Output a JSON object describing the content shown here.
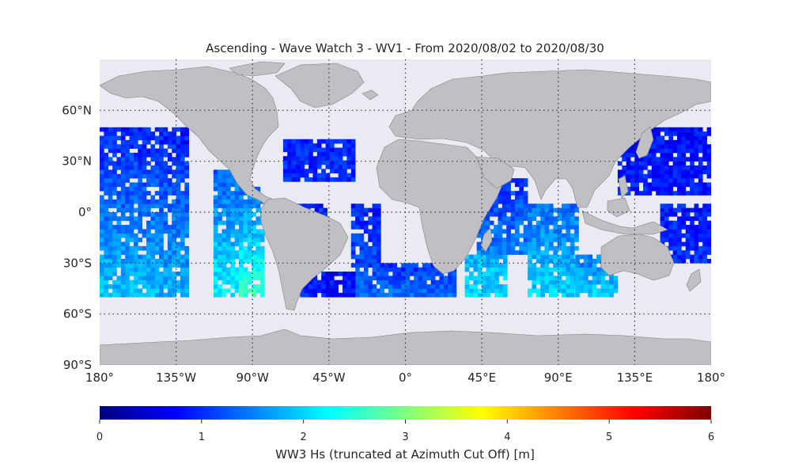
{
  "title": "Ascending - Wave Watch 3 - WV1 - From 2020/08/02 to 2020/08/30",
  "map": {
    "projection": "equirectangular",
    "ocean_color": "#eaeaf2",
    "land_color": "#c0c0c4",
    "grid": "dotted",
    "lon_range": [
      -180,
      180
    ],
    "lat_range": [
      -90,
      90
    ],
    "lon_ticks": [
      {
        "value": -180,
        "label": "180°"
      },
      {
        "value": -135,
        "label": "135°W"
      },
      {
        "value": -90,
        "label": "90°W"
      },
      {
        "value": -45,
        "label": "45°W"
      },
      {
        "value": 0,
        "label": "0°"
      },
      {
        "value": 45,
        "label": "45°E"
      },
      {
        "value": 90,
        "label": "90°E"
      },
      {
        "value": 135,
        "label": "135°E"
      },
      {
        "value": 180,
        "label": "180°"
      }
    ],
    "lat_ticks": [
      {
        "value": 60,
        "label": "60°N"
      },
      {
        "value": 30,
        "label": "30°N"
      },
      {
        "value": 0,
        "label": "0°"
      },
      {
        "value": -30,
        "label": "30°S"
      },
      {
        "value": -60,
        "label": "60°S"
      },
      {
        "value": -90,
        "label": "90°S"
      }
    ]
  },
  "chart_data": {
    "type": "heatmap",
    "data_extent_lat": [
      -50,
      50
    ],
    "swaths": [
      {
        "lon": [
          -180,
          -147
        ],
        "lat": [
          -50,
          50
        ],
        "value_north": 0.9,
        "value_south": 1.9
      },
      {
        "lon": [
          -145,
          -128
        ],
        "lat": [
          -50,
          50
        ],
        "value_north": 0.9,
        "value_south": 1.8
      },
      {
        "lon": [
          -113,
          -97
        ],
        "lat": [
          -50,
          23
        ],
        "value_north": 1.3,
        "value_south": 2.2
      },
      {
        "lon": [
          -98,
          -84
        ],
        "lat": [
          -50,
          13
        ],
        "value_north": 1.4,
        "value_south": 2.6
      },
      {
        "lon": [
          -66,
          -48
        ],
        "lat": [
          -10,
          3
        ],
        "value_north": 1.0,
        "value_south": 1.1
      },
      {
        "lon": [
          -72,
          -30
        ],
        "lat": [
          18,
          42
        ],
        "value_north": 0.9,
        "value_south": 1.0
      },
      {
        "lon": [
          -32,
          -15
        ],
        "lat": [
          -50,
          5
        ],
        "value_north": 0.9,
        "value_south": 1.3
      },
      {
        "lon": [
          -62,
          -30
        ],
        "lat": [
          -50,
          -35
        ],
        "value_north": 0.8,
        "value_south": 0.9
      },
      {
        "lon": [
          -15,
          30
        ],
        "lat": [
          -50,
          -32
        ],
        "value_north": 1.0,
        "value_south": 1.4
      },
      {
        "lon": [
          35,
          60
        ],
        "lat": [
          -50,
          -25
        ],
        "value_north": 1.8,
        "value_south": 2.0
      },
      {
        "lon": [
          42,
          72
        ],
        "lat": [
          -25,
          20
        ],
        "value_north": 1.0,
        "value_south": 1.5
      },
      {
        "lon": [
          72,
          100
        ],
        "lat": [
          -50,
          3
        ],
        "value_north": 1.4,
        "value_south": 2.0
      },
      {
        "lon": [
          100,
          125
        ],
        "lat": [
          -50,
          -25
        ],
        "value_north": 1.4,
        "value_south": 2.0
      },
      {
        "lon": [
          125,
          180
        ],
        "lat": [
          10,
          48
        ],
        "value_north": 0.8,
        "value_south": 0.9
      },
      {
        "lon": [
          150,
          180
        ],
        "lat": [
          -30,
          5
        ],
        "value_north": 0.9,
        "value_south": 1.0
      }
    ],
    "colorbar": {
      "colormap": "jet",
      "range": [
        0,
        6
      ],
      "ticks": [
        "0",
        "1",
        "2",
        "3",
        "4",
        "5",
        "6"
      ],
      "label": "WW3 Hs (truncated at Azimuth Cut Off) [m]"
    }
  }
}
